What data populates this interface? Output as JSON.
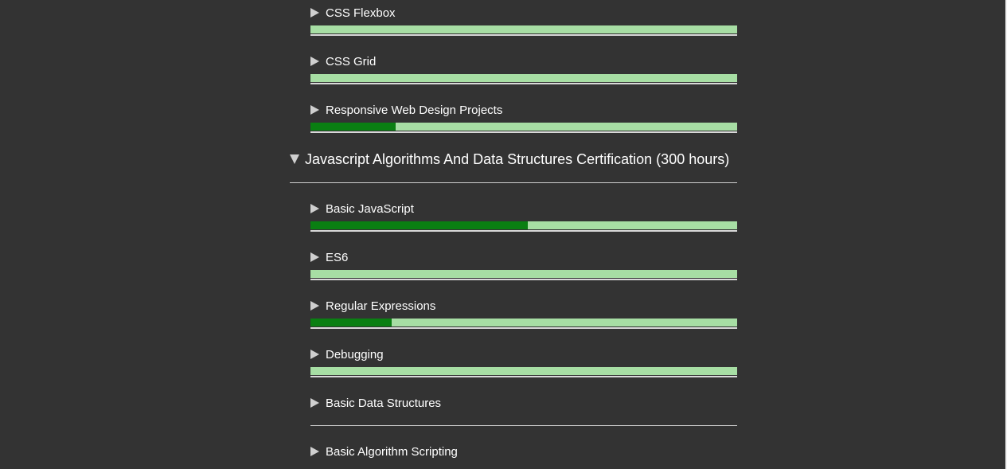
{
  "pre_items": [
    {
      "label": "CSS Flexbox",
      "progress": 0
    },
    {
      "label": "CSS Grid",
      "progress": 0
    },
    {
      "label": "Responsive Web Design Projects",
      "progress": 0.2
    }
  ],
  "section": {
    "title": "Javascript Algorithms And Data Structures Certification (300 hours)",
    "expanded": true
  },
  "items": [
    {
      "label": "Basic JavaScript",
      "progress": 0.51
    },
    {
      "label": "ES6",
      "progress": 0
    },
    {
      "label": "Regular Expressions",
      "progress": 0.19
    },
    {
      "label": "Debugging",
      "progress": 0
    },
    {
      "label": "Basic Data Structures",
      "progress": null
    },
    {
      "label": "Basic Algorithm Scripting",
      "progress": null
    }
  ],
  "colors": {
    "background": "#333333",
    "bar_track": "#a7dea4",
    "bar_fill": "#0a7f12",
    "text": "#ffffff",
    "icon": "#cfcfcf"
  }
}
